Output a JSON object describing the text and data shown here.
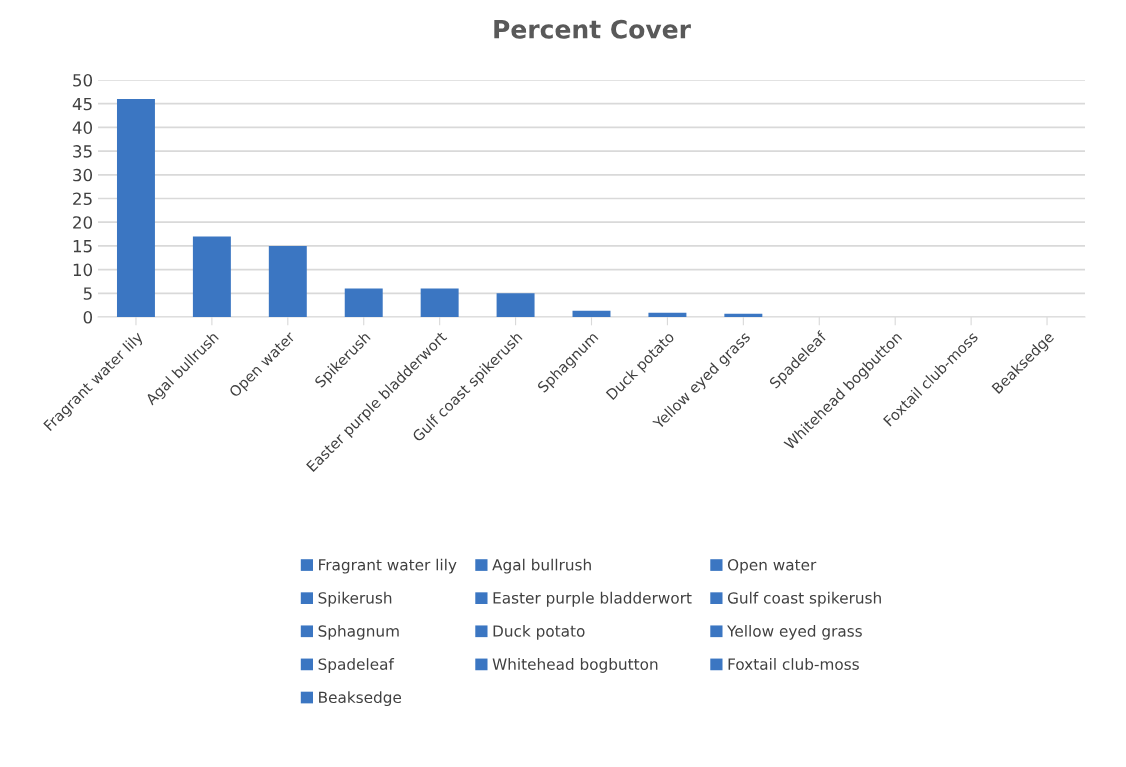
{
  "chart_data": {
    "type": "bar",
    "title": "Percent Cover",
    "categories": [
      "Fragrant water lily",
      "Agal bullrush",
      "Open water",
      "Spikerush",
      "Easter purple bladderwort",
      "Gulf coast spikerush",
      "Sphagnum",
      "Duck potato",
      "Yellow eyed grass",
      "Spadeleaf",
      "Whitehead bogbutton",
      "Foxtail club-moss",
      "Beaksedge"
    ],
    "series": [
      {
        "name": "Fragrant water lily",
        "color": "#3b76c2",
        "values": [
          46,
          null,
          null,
          null,
          null,
          null,
          null,
          null,
          null,
          null,
          null,
          null,
          null
        ]
      },
      {
        "name": "Agal bullrush",
        "color": "#3b76c2",
        "values": [
          null,
          17,
          null,
          null,
          null,
          null,
          null,
          null,
          null,
          null,
          null,
          null,
          null
        ]
      },
      {
        "name": "Open water",
        "color": "#3b76c2",
        "values": [
          null,
          null,
          15,
          null,
          null,
          null,
          null,
          null,
          null,
          null,
          null,
          null,
          null
        ]
      },
      {
        "name": "Spikerush",
        "color": "#3b76c2",
        "values": [
          null,
          null,
          null,
          6,
          null,
          null,
          null,
          null,
          null,
          null,
          null,
          null,
          null
        ]
      },
      {
        "name": "Easter purple bladderwort",
        "color": "#3b76c2",
        "values": [
          null,
          null,
          null,
          null,
          6,
          null,
          null,
          null,
          null,
          null,
          null,
          null,
          null
        ]
      },
      {
        "name": "Gulf coast spikerush",
        "color": "#3b76c2",
        "values": [
          null,
          null,
          null,
          null,
          null,
          5,
          null,
          null,
          null,
          null,
          null,
          null,
          null
        ]
      },
      {
        "name": "Sphagnum",
        "color": "#3b76c2",
        "values": [
          null,
          null,
          null,
          null,
          null,
          null,
          1.3,
          null,
          null,
          null,
          null,
          null,
          null
        ]
      },
      {
        "name": "Duck potato",
        "color": "#3b76c2",
        "values": [
          null,
          null,
          null,
          null,
          null,
          null,
          null,
          0.9,
          null,
          null,
          null,
          null,
          null
        ]
      },
      {
        "name": "Yellow eyed grass",
        "color": "#3b76c2",
        "values": [
          null,
          null,
          null,
          null,
          null,
          null,
          null,
          null,
          0.7,
          null,
          null,
          null,
          null
        ]
      },
      {
        "name": "Spadeleaf",
        "color": "#3b76c2",
        "values": [
          null,
          null,
          null,
          null,
          null,
          null,
          null,
          null,
          null,
          0,
          null,
          null,
          null
        ]
      },
      {
        "name": "Whitehead bogbutton",
        "color": "#3b76c2",
        "values": [
          null,
          null,
          null,
          null,
          null,
          null,
          null,
          null,
          null,
          null,
          0,
          null,
          null
        ]
      },
      {
        "name": "Foxtail club-moss",
        "color": "#3b76c2",
        "values": [
          null,
          null,
          null,
          null,
          null,
          null,
          null,
          null,
          null,
          null,
          null,
          0,
          null
        ]
      },
      {
        "name": "Beaksedge",
        "color": "#3b76c2",
        "values": [
          null,
          null,
          null,
          null,
          null,
          null,
          null,
          null,
          null,
          null,
          null,
          null,
          0
        ]
      }
    ],
    "ylim": [
      0,
      50
    ],
    "yticks": [
      0,
      5,
      10,
      15,
      20,
      25,
      30,
      35,
      40,
      45,
      50
    ],
    "grid": "y",
    "legend": "bottom"
  }
}
